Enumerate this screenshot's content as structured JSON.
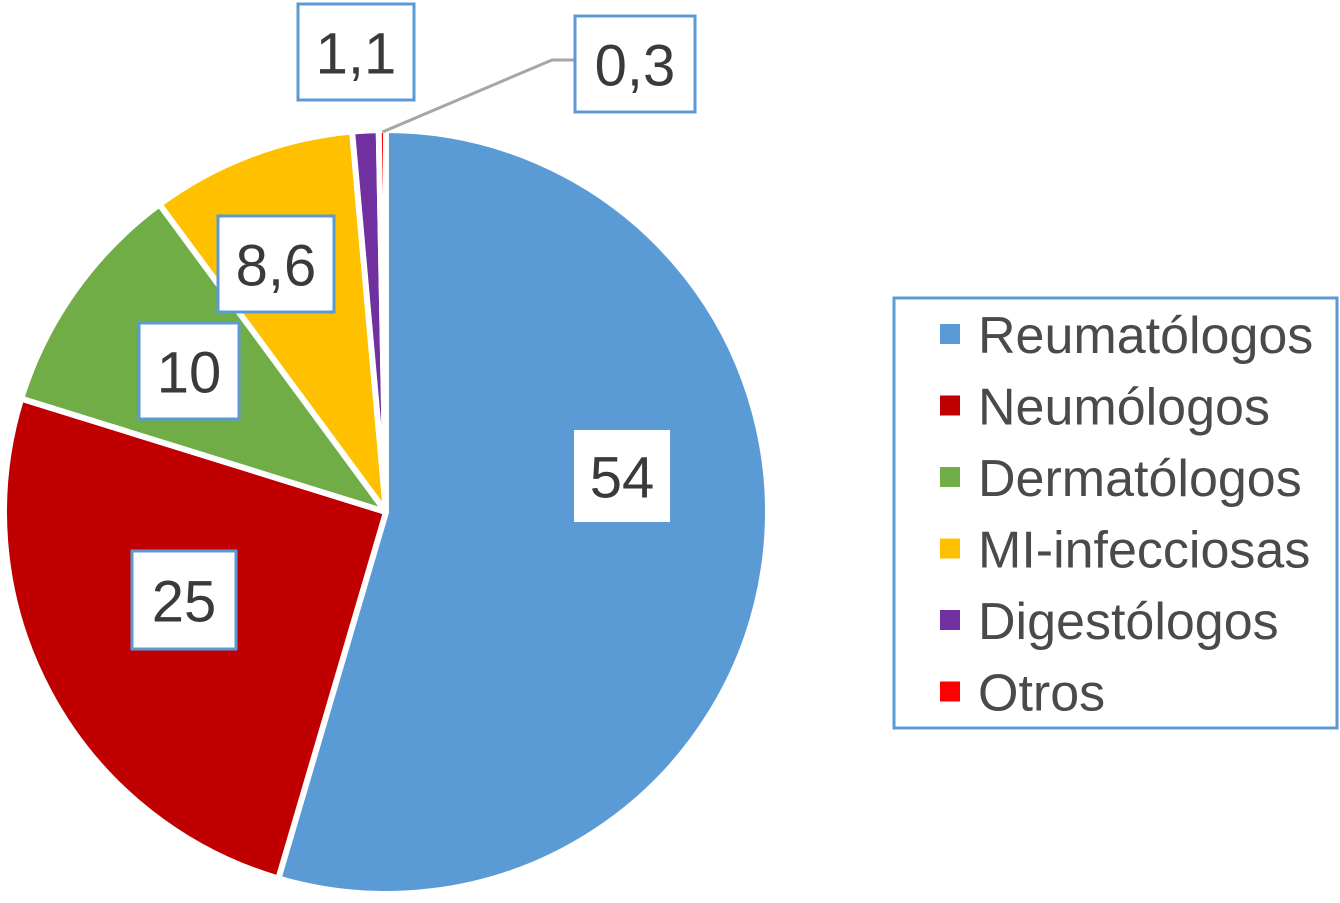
{
  "chart_data": {
    "type": "pie",
    "title": "",
    "slices": [
      {
        "label": "Reumatólogos",
        "value": 54,
        "value_label": "54",
        "color": "#5b9bd5"
      },
      {
        "label": "Neumólogos",
        "value": 25,
        "value_label": "25",
        "color": "#c00000"
      },
      {
        "label": "Dermatólogos",
        "value": 10,
        "value_label": "10",
        "color": "#70ad47"
      },
      {
        "label": "MI-infecciosas",
        "value": 8.6,
        "value_label": "8,6",
        "color": "#ffc000"
      },
      {
        "label": "Digestólogos",
        "value": 1.1,
        "value_label": "1,1",
        "color": "#7030a0"
      },
      {
        "label": "Otros",
        "value": 0.3,
        "value_label": "0,3",
        "color": "#ff0000"
      }
    ],
    "legend_position": "right",
    "start": "top",
    "direction": "clockwise"
  }
}
